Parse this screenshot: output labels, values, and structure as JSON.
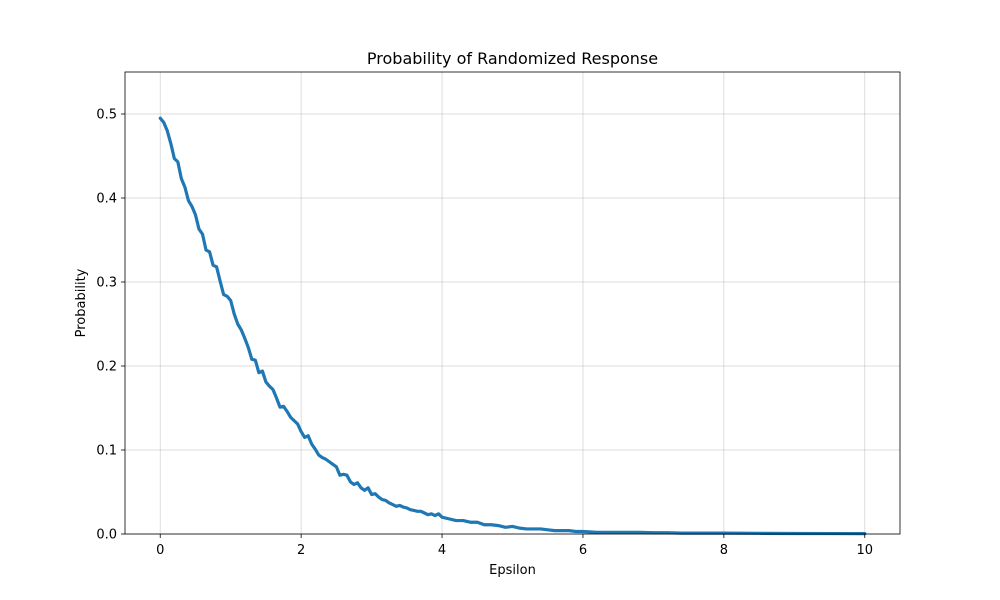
{
  "chart_data": {
    "type": "line",
    "title": "Probability of Randomized Response",
    "xlabel": "Epsilon",
    "ylabel": "Probability",
    "xlim": [
      -0.5,
      10.5
    ],
    "ylim": [
      0,
      0.55
    ],
    "xticks": [
      0,
      2,
      4,
      6,
      8,
      10
    ],
    "yticks": [
      0.0,
      0.1,
      0.2,
      0.3,
      0.4,
      0.5
    ],
    "grid": true,
    "line_color": "#1f77b4",
    "series": [
      {
        "x": [
          0,
          0.05,
          0.1,
          0.15,
          0.2,
          0.25,
          0.3,
          0.35,
          0.4,
          0.45,
          0.5,
          0.55,
          0.6,
          0.65,
          0.7,
          0.75,
          0.8,
          0.85,
          0.9,
          0.95,
          1.0,
          1.05,
          1.1,
          1.15,
          1.2,
          1.25,
          1.3,
          1.35,
          1.4,
          1.45,
          1.5,
          1.55,
          1.6,
          1.65,
          1.7,
          1.75,
          1.8,
          1.85,
          1.9,
          1.95,
          2.0,
          2.05,
          2.1,
          2.15,
          2.2,
          2.25,
          2.3,
          2.35,
          2.4,
          2.45,
          2.5,
          2.55,
          2.6,
          2.65,
          2.7,
          2.75,
          2.8,
          2.85,
          2.9,
          2.95,
          3.0,
          3.05,
          3.1,
          3.15,
          3.2,
          3.25,
          3.3,
          3.35,
          3.4,
          3.45,
          3.5,
          3.55,
          3.6,
          3.65,
          3.7,
          3.75,
          3.8,
          3.85,
          3.9,
          3.95,
          4.0,
          4.1,
          4.2,
          4.3,
          4.4,
          4.5,
          4.6,
          4.7,
          4.8,
          4.9,
          5.0,
          5.1,
          5.2,
          5.3,
          5.4,
          5.5,
          5.6,
          5.7,
          5.8,
          5.9,
          6.0,
          6.2,
          6.4,
          6.6,
          6.8,
          7.0,
          7.2,
          7.4,
          7.6,
          7.8,
          8.0,
          8.5,
          9.0,
          9.5,
          10.0
        ],
        "y": [
          0.495,
          0.49,
          0.48,
          0.465,
          0.447,
          0.443,
          0.423,
          0.413,
          0.397,
          0.39,
          0.38,
          0.363,
          0.357,
          0.338,
          0.336,
          0.32,
          0.318,
          0.301,
          0.285,
          0.283,
          0.278,
          0.262,
          0.25,
          0.243,
          0.233,
          0.222,
          0.208,
          0.207,
          0.192,
          0.194,
          0.181,
          0.176,
          0.172,
          0.162,
          0.151,
          0.152,
          0.146,
          0.139,
          0.135,
          0.131,
          0.122,
          0.115,
          0.117,
          0.107,
          0.101,
          0.094,
          0.091,
          0.089,
          0.086,
          0.083,
          0.08,
          0.07,
          0.071,
          0.07,
          0.062,
          0.059,
          0.061,
          0.055,
          0.052,
          0.055,
          0.047,
          0.048,
          0.044,
          0.041,
          0.04,
          0.037,
          0.035,
          0.033,
          0.034,
          0.032,
          0.031,
          0.029,
          0.028,
          0.027,
          0.027,
          0.025,
          0.023,
          0.024,
          0.022,
          0.024,
          0.02,
          0.018,
          0.016,
          0.016,
          0.014,
          0.014,
          0.011,
          0.011,
          0.01,
          0.008,
          0.009,
          0.007,
          0.006,
          0.006,
          0.006,
          0.005,
          0.004,
          0.004,
          0.004,
          0.003,
          0.003,
          0.002,
          0.002,
          0.002,
          0.002,
          0.0015,
          0.0015,
          0.001,
          0.001,
          0.001,
          0.001,
          0.0008,
          0.0006,
          0.0005,
          0.0004
        ]
      }
    ]
  }
}
